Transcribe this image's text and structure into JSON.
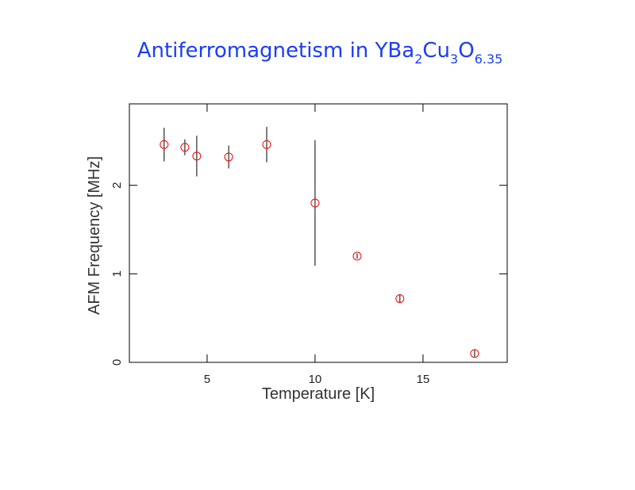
{
  "chart_data": {
    "type": "scatter",
    "title": [
      "Antiferromagnetism in YBa",
      "2",
      "Cu",
      "3",
      "O",
      "6.35"
    ],
    "xlabel": "Temperature [K]",
    "ylabel": "AFM Frequency [MHz]",
    "x": [
      3.01,
      3.97,
      4.52,
      6.0,
      7.76,
      10.0,
      11.95,
      13.93,
      17.39
    ],
    "values": [
      2.46,
      2.43,
      2.33,
      2.32,
      2.46,
      1.8,
      1.2,
      0.72,
      0.1
    ],
    "errors": [
      0.19,
      0.09,
      0.23,
      0.13,
      0.2,
      0.71,
      0.03,
      0.05,
      0.04
    ],
    "color": "#ff0000",
    "xlim": [
      1.4,
      18.9
    ],
    "ylim": [
      0,
      2.92
    ],
    "xticks": [
      5,
      10,
      15
    ],
    "yticks": [
      0,
      1,
      2
    ]
  }
}
